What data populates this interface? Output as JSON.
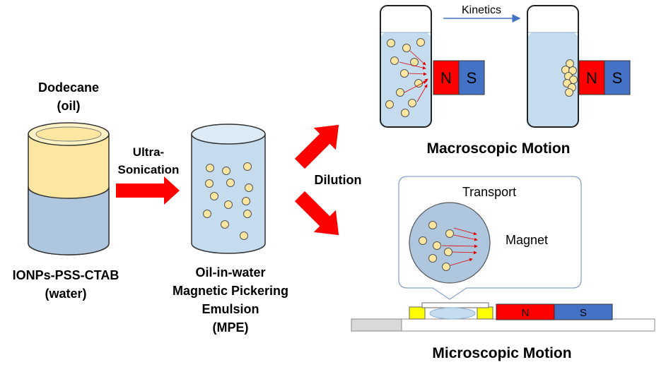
{
  "labels": {
    "oil_title": "Dodecane",
    "oil_sub": "(oil)",
    "water_title": "IONPs-PSS-CTAB",
    "water_sub": "(water)",
    "step1_line1": "Ultra-",
    "step1_line2": "Sonication",
    "mpe_line1": "Oil-in-water",
    "mpe_line2": "Magnetic Pickering",
    "mpe_line3": "Emulsion",
    "mpe_line4": "(MPE)",
    "dilution": "Dilution",
    "kinetics": "Kinetics",
    "macro_title": "Macroscopic Motion",
    "micro_title": "Microscopic Motion",
    "transport": "Transport",
    "magnet": "Magnet",
    "north": "N",
    "south": "S"
  },
  "colors": {
    "oil": "#fde6a0",
    "water": "#aec6de",
    "water_light": "#c5dbee",
    "droplet": "#fde6a0",
    "arrow_red": "#ff0000",
    "magnet_north": "#ff0000",
    "magnet_south": "#4472c4",
    "kinetics_arrow": "#4472c4",
    "spacer_yellow": "#ffff00"
  }
}
